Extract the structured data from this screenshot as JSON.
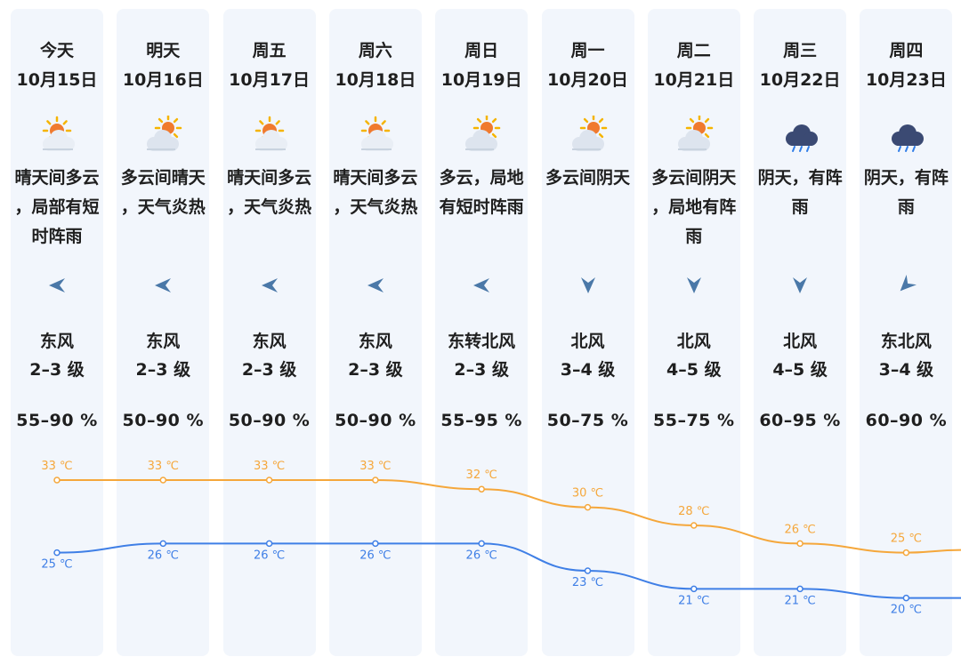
{
  "colors": {
    "high": "#f5a73b",
    "low": "#3f7fe6",
    "arrow": "#4a78a8",
    "column_bg": "#f2f6fc"
  },
  "days": [
    {
      "day": "今天",
      "date": "10月15日",
      "icon": "sun-behind-cloud-icon",
      "weather": "晴天间多云，局部有短时阵雨",
      "wind_dir": "东风",
      "wind_level": "2–3 级",
      "wind_arrow": "arrow-left-icon",
      "humidity": "55–90 %"
    },
    {
      "day": "明天",
      "date": "10月16日",
      "icon": "cloud-with-sun-icon",
      "weather": "多云间晴天，天气炎热",
      "wind_dir": "东风",
      "wind_level": "2–3 级",
      "wind_arrow": "arrow-left-icon",
      "humidity": "50–90 %"
    },
    {
      "day": "周五",
      "date": "10月17日",
      "icon": "sun-behind-cloud-icon",
      "weather": "晴天间多云，天气炎热",
      "wind_dir": "东风",
      "wind_level": "2–3 级",
      "wind_arrow": "arrow-left-icon",
      "humidity": "50–90 %"
    },
    {
      "day": "周六",
      "date": "10月18日",
      "icon": "sun-behind-cloud-icon",
      "weather": "晴天间多云，天气炎热",
      "wind_dir": "东风",
      "wind_level": "2–3 级",
      "wind_arrow": "arrow-left-icon",
      "humidity": "50–90 %"
    },
    {
      "day": "周日",
      "date": "10月19日",
      "icon": "cloud-with-sun-icon",
      "weather": "多云，局地有短时阵雨",
      "wind_dir": "东转北风",
      "wind_level": "2–3 级",
      "wind_arrow": "arrow-left-icon",
      "humidity": "55–95 %"
    },
    {
      "day": "周一",
      "date": "10月20日",
      "icon": "cloud-with-sun-icon",
      "weather": "多云间阴天",
      "wind_dir": "北风",
      "wind_level": "3–4 级",
      "wind_arrow": "arrow-down-icon",
      "humidity": "50–75 %"
    },
    {
      "day": "周二",
      "date": "10月21日",
      "icon": "cloud-with-sun-icon",
      "weather": "多云间阴天，局地有阵雨",
      "wind_dir": "北风",
      "wind_level": "4–5 级",
      "wind_arrow": "arrow-down-icon",
      "humidity": "55–75 %"
    },
    {
      "day": "周三",
      "date": "10月22日",
      "icon": "rain-cloud-icon",
      "weather": "阴天，有阵雨",
      "wind_dir": "北风",
      "wind_level": "4–5 级",
      "wind_arrow": "arrow-down-icon",
      "humidity": "60–95 %"
    },
    {
      "day": "周四",
      "date": "10月23日",
      "icon": "rain-cloud-icon",
      "weather": "阴天，有阵雨",
      "wind_dir": "东北风",
      "wind_level": "3–4 级",
      "wind_arrow": "arrow-down-left-icon",
      "humidity": "60–90 %"
    }
  ],
  "chart_data": {
    "type": "line",
    "categories": [
      "今天",
      "明天",
      "周五",
      "周六",
      "周日",
      "周一",
      "周二",
      "周三",
      "周四"
    ],
    "series": [
      {
        "values": [
          33,
          33,
          33,
          33,
          32,
          30,
          28,
          26,
          25
        ]
      },
      {
        "values": [
          25,
          26,
          26,
          26,
          26,
          23,
          21,
          21,
          20
        ]
      }
    ],
    "unit": "℃"
  }
}
